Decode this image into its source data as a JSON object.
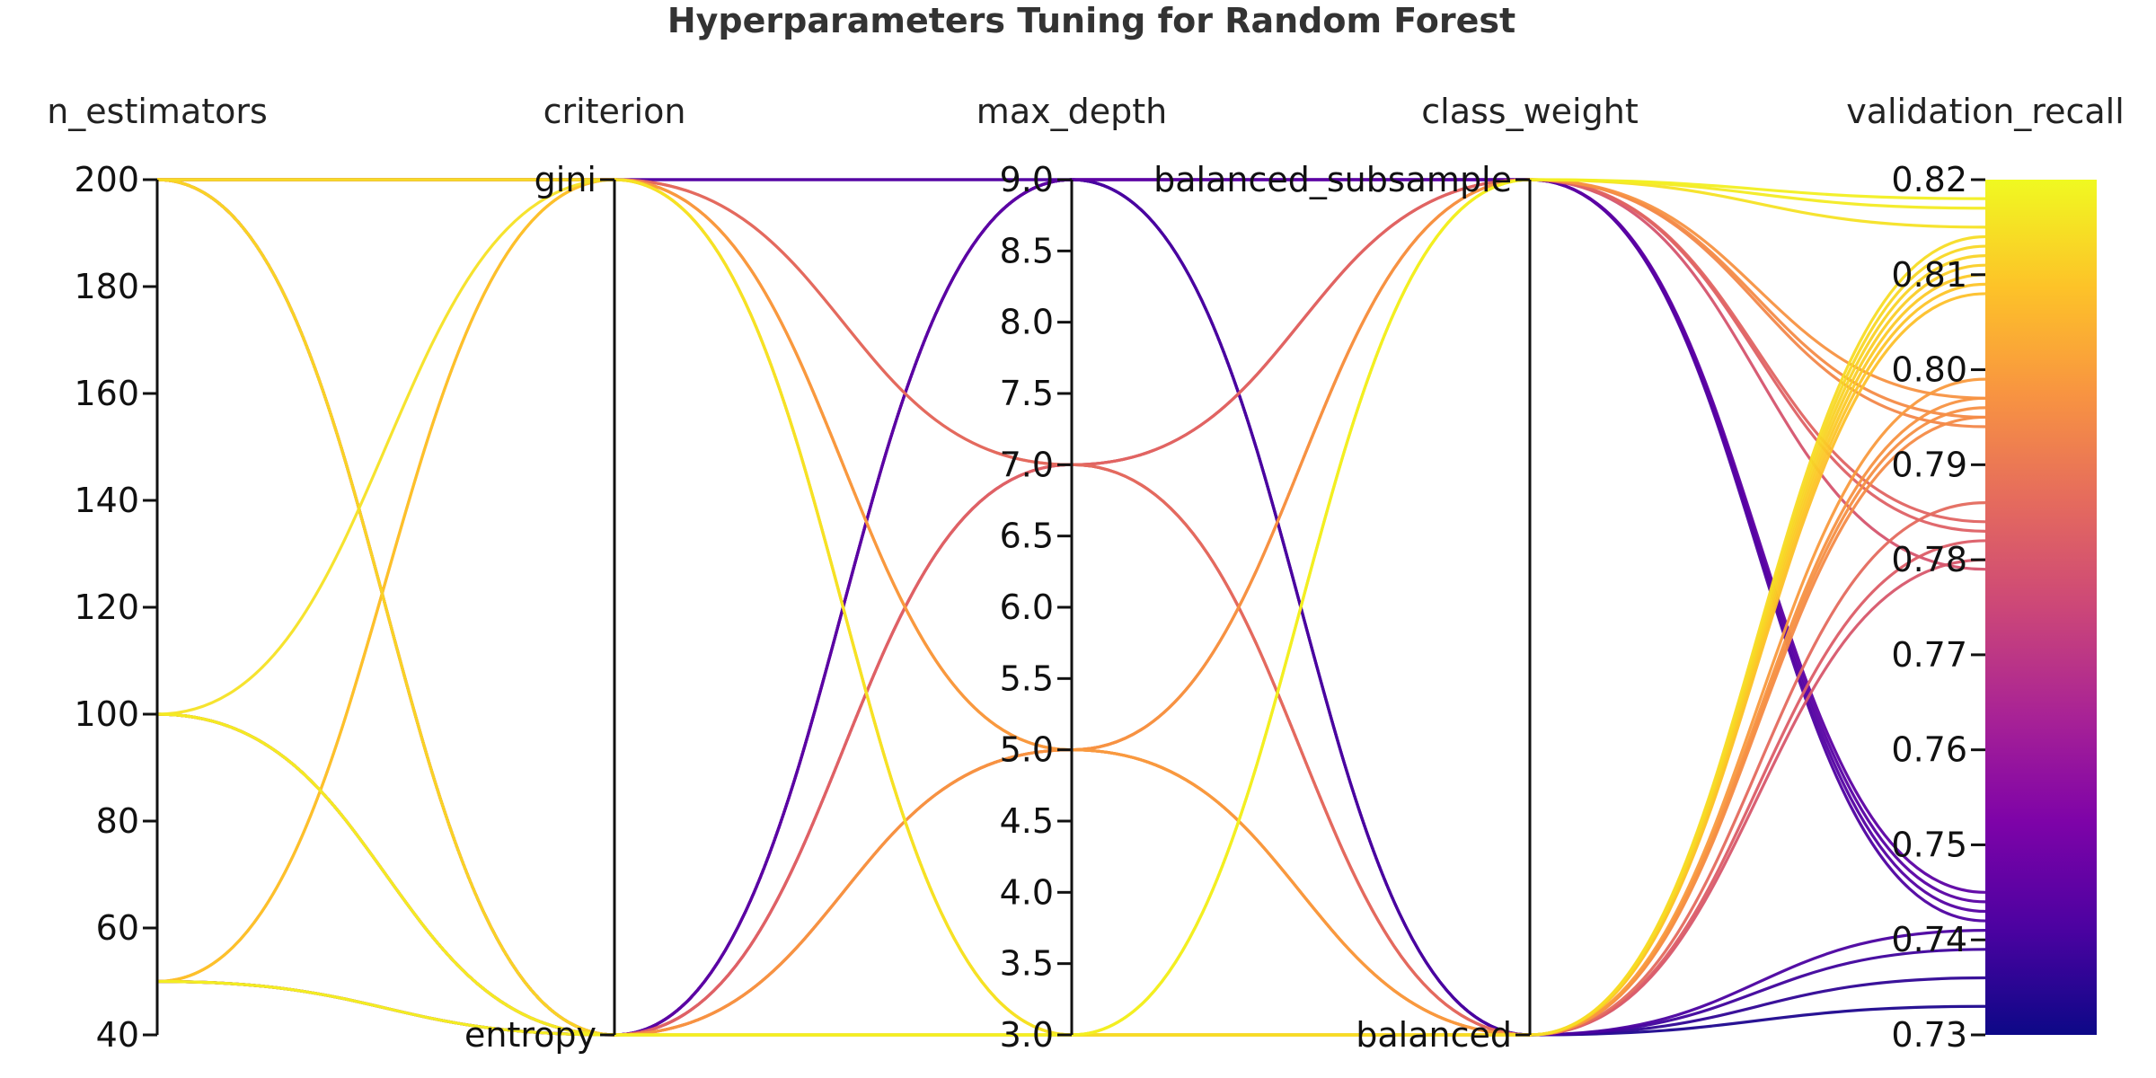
{
  "chart_data": {
    "type": "parallel_coordinates",
    "title": "Hyperparameters Tuning for Random Forest",
    "colormap": "plasma",
    "color_by": "validation_recall",
    "axes": [
      {
        "name": "n_estimators",
        "label": "n_estimators",
        "kind": "numeric",
        "range": [
          40,
          200
        ],
        "ticks": [
          {
            "v": 40,
            "label": "40"
          },
          {
            "v": 60,
            "label": "60"
          },
          {
            "v": 80,
            "label": "80"
          },
          {
            "v": 100,
            "label": "100"
          },
          {
            "v": 120,
            "label": "120"
          },
          {
            "v": 140,
            "label": "140"
          },
          {
            "v": 160,
            "label": "160"
          },
          {
            "v": 180,
            "label": "180"
          },
          {
            "v": 200,
            "label": "200"
          }
        ]
      },
      {
        "name": "criterion",
        "label": "criterion",
        "kind": "categorical",
        "categories": [
          "entropy",
          "gini"
        ]
      },
      {
        "name": "max_depth",
        "label": "max_depth",
        "kind": "numeric",
        "range": [
          3.0,
          9.0
        ],
        "ticks": [
          {
            "v": 3.0,
            "label": "3.0"
          },
          {
            "v": 3.5,
            "label": "3.5"
          },
          {
            "v": 4.0,
            "label": "4.0"
          },
          {
            "v": 4.5,
            "label": "4.5"
          },
          {
            "v": 5.0,
            "label": "5.0"
          },
          {
            "v": 5.5,
            "label": "5.5"
          },
          {
            "v": 6.0,
            "label": "6.0"
          },
          {
            "v": 6.5,
            "label": "6.5"
          },
          {
            "v": 7.0,
            "label": "7.0"
          },
          {
            "v": 7.5,
            "label": "7.5"
          },
          {
            "v": 8.0,
            "label": "8.0"
          },
          {
            "v": 8.5,
            "label": "8.5"
          },
          {
            "v": 9.0,
            "label": "9.0"
          }
        ]
      },
      {
        "name": "class_weight",
        "label": "class_weight",
        "kind": "categorical",
        "categories": [
          "balanced",
          "balanced_subsample"
        ]
      },
      {
        "name": "validation_recall",
        "label": "validation_recall",
        "kind": "numeric",
        "range": [
          0.73,
          0.82
        ],
        "ticks": [
          {
            "v": 0.73,
            "label": "0.73"
          },
          {
            "v": 0.74,
            "label": "0.74"
          },
          {
            "v": 0.75,
            "label": "0.75"
          },
          {
            "v": 0.76,
            "label": "0.76"
          },
          {
            "v": 0.77,
            "label": "0.77"
          },
          {
            "v": 0.78,
            "label": "0.78"
          },
          {
            "v": 0.79,
            "label": "0.79"
          },
          {
            "v": 0.8,
            "label": "0.80"
          },
          {
            "v": 0.81,
            "label": "0.81"
          },
          {
            "v": 0.82,
            "label": "0.82"
          }
        ]
      }
    ],
    "rows": [
      {
        "n_estimators": 200,
        "criterion": "gini",
        "max_depth": 3,
        "class_weight": "balanced",
        "validation_recall": 0.814
      },
      {
        "n_estimators": 200,
        "criterion": "gini",
        "max_depth": 3,
        "class_weight": "balanced",
        "validation_recall": 0.811
      },
      {
        "n_estimators": 200,
        "criterion": "entropy",
        "max_depth": 3,
        "class_weight": "balanced",
        "validation_recall": 0.812
      },
      {
        "n_estimators": 200,
        "criterion": "entropy",
        "max_depth": 3,
        "class_weight": "balanced",
        "validation_recall": 0.81
      },
      {
        "n_estimators": 100,
        "criterion": "gini",
        "max_depth": 3,
        "class_weight": "balanced_subsample",
        "validation_recall": 0.815
      },
      {
        "n_estimators": 100,
        "criterion": "entropy",
        "max_depth": 3,
        "class_weight": "balanced",
        "validation_recall": 0.813
      },
      {
        "n_estimators": 100,
        "criterion": "entropy",
        "max_depth": 3,
        "class_weight": "balanced_subsample",
        "validation_recall": 0.817
      },
      {
        "n_estimators": 50,
        "criterion": "gini",
        "max_depth": 3,
        "class_weight": "balanced",
        "validation_recall": 0.809
      },
      {
        "n_estimators": 50,
        "criterion": "entropy",
        "max_depth": 3,
        "class_weight": "balanced",
        "validation_recall": 0.808
      },
      {
        "n_estimators": 50,
        "criterion": "entropy",
        "max_depth": 3,
        "class_weight": "balanced_subsample",
        "validation_recall": 0.818
      },
      {
        "n_estimators": 200,
        "criterion": "gini",
        "max_depth": 5,
        "class_weight": "balanced",
        "validation_recall": 0.799
      },
      {
        "n_estimators": 200,
        "criterion": "gini",
        "max_depth": 5,
        "class_weight": "balanced_subsample",
        "validation_recall": 0.797
      },
      {
        "n_estimators": 200,
        "criterion": "entropy",
        "max_depth": 5,
        "class_weight": "balanced",
        "validation_recall": 0.797
      },
      {
        "n_estimators": 200,
        "criterion": "entropy",
        "max_depth": 5,
        "class_weight": "balanced_subsample",
        "validation_recall": 0.795
      },
      {
        "n_estimators": 100,
        "criterion": "entropy",
        "max_depth": 5,
        "class_weight": "balanced",
        "validation_recall": 0.796
      },
      {
        "n_estimators": 100,
        "criterion": "entropy",
        "max_depth": 5,
        "class_weight": "balanced_subsample",
        "validation_recall": 0.794
      },
      {
        "n_estimators": 50,
        "criterion": "gini",
        "max_depth": 5,
        "class_weight": "balanced",
        "validation_recall": 0.795
      },
      {
        "n_estimators": 200,
        "criterion": "gini",
        "max_depth": 7,
        "class_weight": "balanced",
        "validation_recall": 0.786
      },
      {
        "n_estimators": 200,
        "criterion": "gini",
        "max_depth": 7,
        "class_weight": "balanced_subsample",
        "validation_recall": 0.784
      },
      {
        "n_estimators": 200,
        "criterion": "entropy",
        "max_depth": 7,
        "class_weight": "balanced",
        "validation_recall": 0.782
      },
      {
        "n_estimators": 200,
        "criterion": "entropy",
        "max_depth": 7,
        "class_weight": "balanced_subsample",
        "validation_recall": 0.783
      },
      {
        "n_estimators": 100,
        "criterion": "entropy",
        "max_depth": 7,
        "class_weight": "balanced",
        "validation_recall": 0.78
      },
      {
        "n_estimators": 50,
        "criterion": "entropy",
        "max_depth": 7,
        "class_weight": "balanced_subsample",
        "validation_recall": 0.779
      },
      {
        "n_estimators": 200,
        "criterion": "gini",
        "max_depth": 9,
        "class_weight": "balanced",
        "validation_recall": 0.741
      },
      {
        "n_estimators": 200,
        "criterion": "gini",
        "max_depth": 9,
        "class_weight": "balanced_subsample",
        "validation_recall": 0.743
      },
      {
        "n_estimators": 200,
        "criterion": "entropy",
        "max_depth": 9,
        "class_weight": "balanced",
        "validation_recall": 0.739
      },
      {
        "n_estimators": 200,
        "criterion": "entropy",
        "max_depth": 9,
        "class_weight": "balanced_subsample",
        "validation_recall": 0.745
      },
      {
        "n_estimators": 100,
        "criterion": "entropy",
        "max_depth": 9,
        "class_weight": "balanced",
        "validation_recall": 0.736
      },
      {
        "n_estimators": 100,
        "criterion": "entropy",
        "max_depth": 9,
        "class_weight": "balanced_subsample",
        "validation_recall": 0.744
      },
      {
        "n_estimators": 50,
        "criterion": "entropy",
        "max_depth": 9,
        "class_weight": "balanced",
        "validation_recall": 0.733
      },
      {
        "n_estimators": 50,
        "criterion": "entropy",
        "max_depth": 9,
        "class_weight": "balanced_subsample",
        "validation_recall": 0.742
      }
    ]
  }
}
